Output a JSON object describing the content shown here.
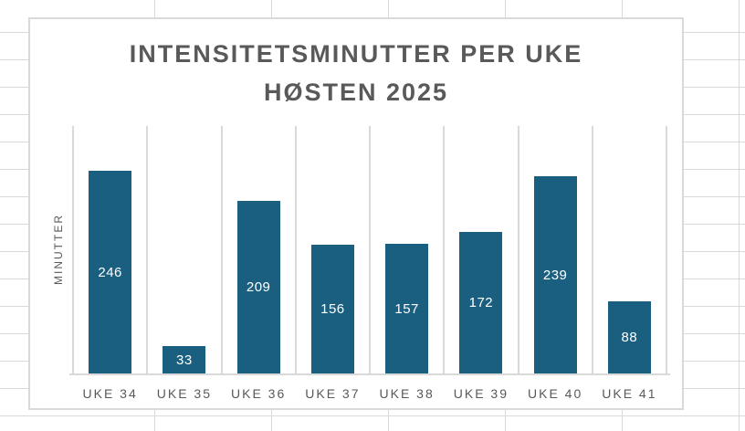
{
  "colors": {
    "bar": "#1A5F80",
    "text_gray": "#595959",
    "grid_line": "#D9D9D9",
    "card_border": "#D9D9D9",
    "background": "#FFFFFF",
    "data_label_text": "#FFFFFF"
  },
  "chart_data": {
    "type": "bar",
    "title": "INTENSITETSMINUTTER PER UKE HØSTEN 2025",
    "title_lines": [
      "INTENSITETSMINUTTER PER UKE",
      "HØSTEN 2025"
    ],
    "categories": [
      "UKE 34",
      "UKE 35",
      "UKE 36",
      "UKE 37",
      "UKE 38",
      "UKE 39",
      "UKE 40",
      "UKE 41"
    ],
    "values": [
      246,
      33,
      209,
      156,
      157,
      172,
      239,
      88
    ],
    "xlabel": "",
    "ylabel": "MINUTTER",
    "ylim": [
      0,
      300
    ],
    "y_axis_ticks": "hidden",
    "gridlines": "vertical category separators only",
    "legend": "none",
    "data_labels": "inside center, white",
    "bar_color": "#1A5F80"
  }
}
